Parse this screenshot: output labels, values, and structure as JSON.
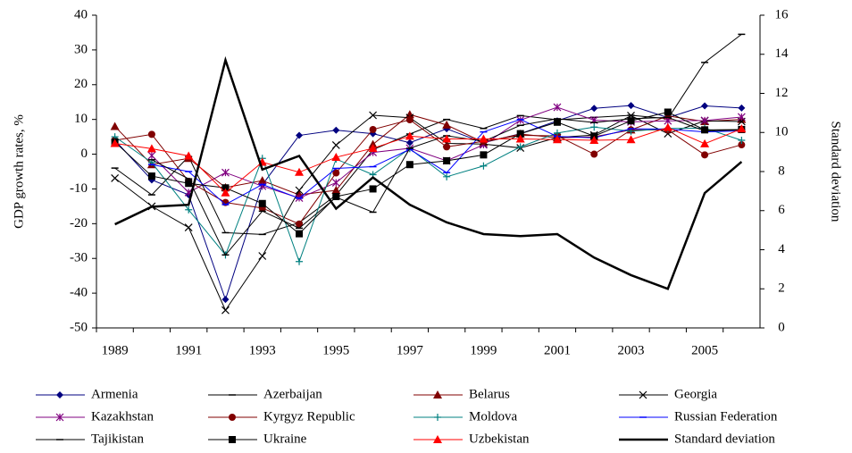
{
  "chart_data": {
    "type": "line",
    "y_label": "GDP growth rates, %",
    "y2_label": "Standard deviation",
    "categories": [
      "1989",
      null,
      "1991",
      null,
      "1993",
      null,
      "1995",
      null,
      "1997",
      null,
      "1999",
      null,
      "2001",
      null,
      "2003",
      null,
      "2005",
      null
    ],
    "ylim": [
      -50,
      40
    ],
    "yticks": [
      -50,
      -40,
      -30,
      -20,
      -10,
      0,
      10,
      20,
      30,
      40
    ],
    "y2lim": [
      0,
      16
    ],
    "y2ticks": [
      0,
      2,
      4,
      6,
      8,
      10,
      12,
      14,
      16
    ],
    "series": [
      {
        "name": "Armenia",
        "color": "#000080",
        "marker": "diamond",
        "values": [
          4,
          -7.4,
          -11.7,
          -41.8,
          -8.8,
          5.4,
          6.9,
          5.9,
          3.3,
          7.3,
          3.3,
          5.9,
          9.6,
          13.2,
          14,
          10.5,
          13.9,
          13.3
        ]
      },
      {
        "name": "Azerbaijan",
        "color": "#000000",
        "marker": "dash",
        "values": [
          -4,
          -11.7,
          -0.7,
          -22.6,
          -23.1,
          -19.7,
          -11.8,
          1.3,
          5.8,
          10,
          7.4,
          11.1,
          9.9,
          10.6,
          11.2,
          10.2,
          26.4,
          34.5
        ]
      },
      {
        "name": "Belarus",
        "color": "#800000",
        "marker": "triangle",
        "values": [
          8,
          -3,
          -1.2,
          -9.6,
          -7.6,
          -11.7,
          -10.4,
          2.8,
          11.4,
          8.4,
          3.4,
          5.8,
          4.7,
          5,
          7,
          11,
          9.4,
          10
        ]
      },
      {
        "name": "Georgia",
        "color": "#000000",
        "marker": "x",
        "values": [
          -6.9,
          -15,
          -21.1,
          -44.9,
          -29.3,
          -10.4,
          2.6,
          11.2,
          10.5,
          3.1,
          2.9,
          1.8,
          4.8,
          5.5,
          11.1,
          5.9,
          9.6,
          9.4
        ]
      },
      {
        "name": "Kazakhstan",
        "color": "#800080",
        "marker": "star",
        "values": [
          null,
          -0.4,
          -11,
          -5.3,
          -9.2,
          -12.6,
          -8.2,
          0.5,
          1.7,
          -1.9,
          2.7,
          9.8,
          13.5,
          9.8,
          9.3,
          9.6,
          9.7,
          10.7
        ]
      },
      {
        "name": "Kyrgyz Republic",
        "color": "#800000",
        "marker": "circle",
        "values": [
          4,
          5.7,
          -7.8,
          -13.9,
          -15.5,
          -20.1,
          -5.4,
          7.1,
          9.9,
          2.1,
          3.7,
          5.4,
          5.3,
          0,
          7,
          7,
          -0.2,
          2.7
        ]
      },
      {
        "name": "Moldova",
        "color": "#008080",
        "marker": "plus",
        "values": [
          5,
          -2.4,
          -16,
          -29,
          -1.2,
          -30.9,
          -1.4,
          -5.9,
          1.6,
          -6.5,
          -3.4,
          2.1,
          6.1,
          7.8,
          6.6,
          7.4,
          7.5,
          4
        ]
      },
      {
        "name": "Russian Federation",
        "color": "#0000ff",
        "marker": "dash",
        "values": [
          null,
          -3,
          -5,
          -14.5,
          -8.7,
          -12.7,
          -4.1,
          -3.6,
          1.4,
          -5.3,
          6.4,
          10,
          5.1,
          4.7,
          7.3,
          7.2,
          6.4,
          6.7
        ]
      },
      {
        "name": "Tajikistan",
        "color": "#000000",
        "marker": "dash",
        "values": [
          null,
          -1.6,
          -7.1,
          -29,
          -16.4,
          -21.3,
          -12.4,
          -16.7,
          1.7,
          5.3,
          3.7,
          8.3,
          10.2,
          9.1,
          10.2,
          10.6,
          6.7,
          7
        ]
      },
      {
        "name": "Ukraine",
        "color": "#000000",
        "marker": "square",
        "values": [
          3.5,
          -6.3,
          -8.4,
          -9.7,
          -14.2,
          -22.9,
          -12.2,
          -10,
          -3,
          -1.9,
          -0.2,
          5.9,
          9.2,
          5.2,
          9.6,
          12.1,
          7,
          7.1
        ]
      },
      {
        "name": "Uzbekistan",
        "color": "#ff0000",
        "marker": "triangle",
        "values": [
          3.1,
          1.6,
          -0.5,
          -11.1,
          -2.3,
          -5.2,
          -0.9,
          1.7,
          5.2,
          4.4,
          4.4,
          4.4,
          4.2,
          4,
          4.2,
          7.7,
          3,
          7.3
        ]
      },
      {
        "name": "Standard deviation",
        "color": "#000000",
        "marker": "none",
        "width": 2.5,
        "axis": "y2",
        "values": [
          5.3,
          6.2,
          6.3,
          13.7,
          8.1,
          8.8,
          6.1,
          7.7,
          6.3,
          5.4,
          4.8,
          4.7,
          4.8,
          3.6,
          2.7,
          2.0,
          6.9,
          8.5
        ]
      }
    ]
  }
}
